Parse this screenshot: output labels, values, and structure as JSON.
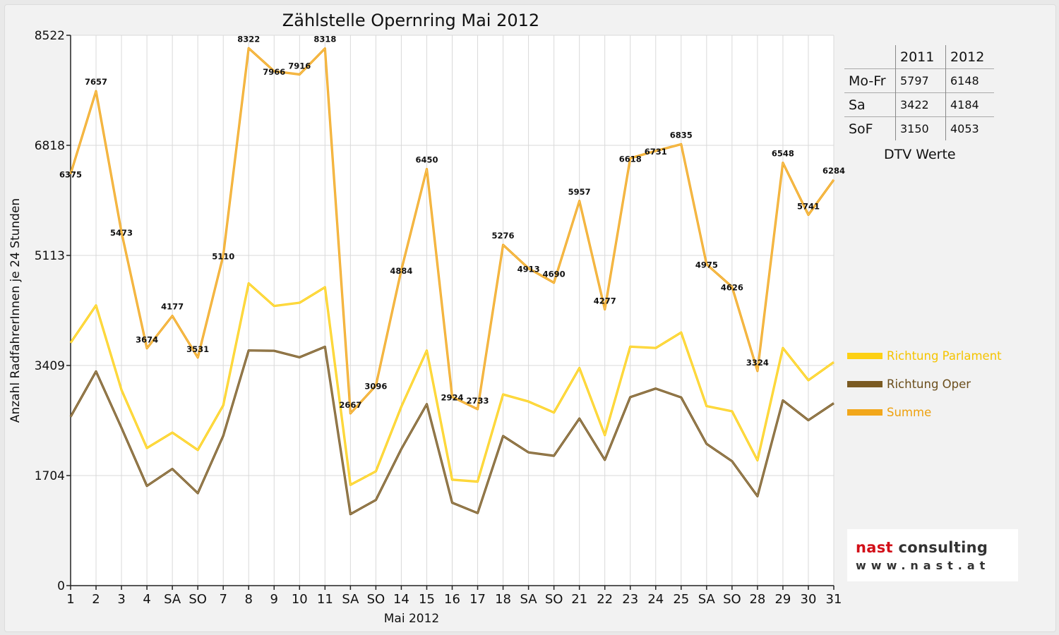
{
  "chart_data": {
    "type": "line",
    "title": "Zählstelle Opernring Mai 2012",
    "xlabel": "Mai 2012",
    "ylabel": "Anzahl RadfahrerInnen je 24 Stunden",
    "ylim": [
      0,
      8522
    ],
    "yticks": [
      "0",
      "1704",
      "3409",
      "5113",
      "6818",
      "8522"
    ],
    "grid": true,
    "legend_position": "right",
    "categories": [
      "1",
      "2",
      "3",
      "4",
      "SA",
      "SO",
      "7",
      "8",
      "9",
      "10",
      "11",
      "SA",
      "SO",
      "14",
      "15",
      "16",
      "17",
      "18",
      "SA",
      "SO",
      "21",
      "22",
      "23",
      "24",
      "25",
      "SA",
      "SO",
      "28",
      "29",
      "30",
      "31"
    ],
    "red_categories": [
      0,
      5,
      12,
      16,
      19,
      26,
      27
    ],
    "series": [
      {
        "name": "Richtung Parlament",
        "color": "#fdd014",
        "values": [
          3760,
          4340,
          3030,
          2130,
          2370,
          2100,
          2790,
          4680,
          4330,
          4380,
          4620,
          1560,
          1770,
          2770,
          3640,
          1640,
          1610,
          2960,
          2850,
          2680,
          3370,
          2330,
          3700,
          3680,
          3920,
          2780,
          2700,
          1940,
          3680,
          3180,
          3460
        ]
      },
      {
        "name": "Richtung Oper",
        "color": "#7a5a22",
        "values": [
          2615,
          3317,
          2443,
          1544,
          1807,
          1431,
          2320,
          3642,
          3636,
          3536,
          3698,
          1107,
          1326,
          2114,
          2810,
          1284,
          1123,
          2316,
          2063,
          2010,
          2587,
          1947,
          2918,
          3051,
          2915,
          2195,
          1926,
          1384,
          2868,
          2561,
          2824
        ]
      },
      {
        "name": "Summe",
        "color": "#f2a71b",
        "values": [
          6375,
          7657,
          5473,
          3674,
          4177,
          3531,
          5110,
          8322,
          7966,
          7916,
          8318,
          2667,
          3096,
          4884,
          6450,
          2924,
          2733,
          5276,
          4913,
          4690,
          5957,
          4277,
          6618,
          6731,
          6835,
          4975,
          4626,
          3324,
          6548,
          5741,
          6284
        ]
      }
    ],
    "data_labels": [
      "6375",
      "7657",
      "5473",
      "3674",
      "4177",
      "3531",
      "5110",
      "8322",
      "7966",
      "7916",
      "8318",
      "2667",
      "3096",
      "4884",
      "6450",
      "2924",
      "2733",
      "5276",
      "4913",
      "4690",
      "5957",
      "4277",
      "6618",
      "6731",
      "6835",
      "4975",
      "4626",
      "3324",
      "6548",
      "5741",
      "6284"
    ]
  },
  "dtv_table": {
    "headers": [
      "",
      "2011",
      "2012"
    ],
    "rows": [
      {
        "label": "Mo-Fr",
        "v2011": "5797",
        "v2012": "6148"
      },
      {
        "label": "Sa",
        "v2011": "3422",
        "v2012": "4184"
      },
      {
        "label": "SoF",
        "v2011": "3150",
        "v2012": "4053"
      }
    ],
    "caption": "DTV Werte"
  },
  "logo": {
    "brand_red": "nast",
    "brand_grey": "consulting",
    "url": "www.nast.at",
    "brand_color": "#d20f18"
  }
}
